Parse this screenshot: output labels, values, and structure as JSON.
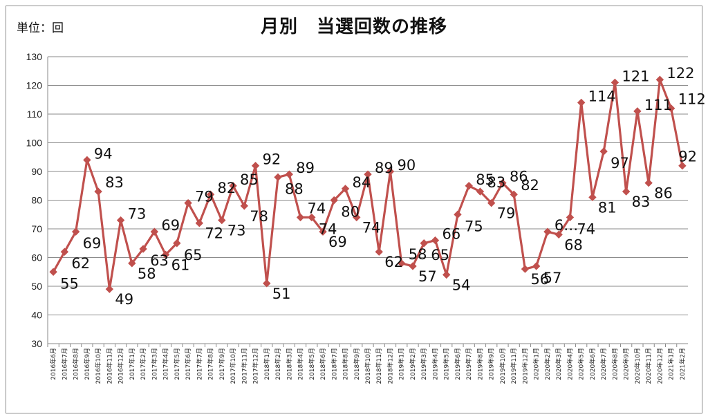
{
  "unit_label": "単位：回",
  "chart_data": {
    "type": "line",
    "title": "月別　当選回数の推移",
    "xlabel": "",
    "ylabel": "",
    "ylim": [
      30,
      130
    ],
    "yticks": [
      30,
      40,
      50,
      60,
      70,
      80,
      90,
      100,
      110,
      120,
      130
    ],
    "grid": true,
    "legend": "none",
    "series_color": "#c0504d",
    "categories": [
      "2016年6月",
      "2016年7月",
      "2016年8月",
      "2016年9月",
      "2016年10月",
      "2016年11月",
      "2016年12月",
      "2017年1月",
      "2017年2月",
      "2017年3月",
      "2017年4月",
      "2017年5月",
      "2017年6月",
      "2017年7月",
      "2017年8月",
      "2017年9月",
      "2017年10月",
      "2017年11月",
      "2017年12月",
      "2018年1月",
      "2018年2月",
      "2018年3月",
      "2018年4月",
      "2018年5月",
      "2018年6月",
      "2018年7月",
      "2018年8月",
      "2018年9月",
      "2018年10月",
      "2018年11月",
      "2018年12月",
      "2019年1月",
      "2019年2月",
      "2019年3月",
      "2019年4月",
      "2019年5月",
      "2019年6月",
      "2019年7月",
      "2019年8月",
      "2019年9月",
      "2019年10月",
      "2019年11月",
      "2019年12月",
      "2020年1月",
      "2020年2月",
      "2020年3月",
      "2020年4月",
      "2020年5月",
      "2020年6月",
      "2020年7月",
      "2020年8月",
      "2020年9月",
      "2020年10月",
      "2020年11月",
      "2020年12月",
      "2021年1月",
      "2021年2月"
    ],
    "series": [
      {
        "values": [
          55,
          62,
          69,
          94,
          83,
          49,
          73,
          58,
          63,
          69,
          61,
          65,
          79,
          72,
          82,
          73,
          85,
          78,
          92,
          51,
          88,
          89,
          74,
          74,
          69,
          80,
          84,
          74,
          89,
          62,
          90,
          58,
          57,
          65,
          66,
          54,
          75,
          85,
          83,
          79,
          86,
          82,
          56,
          57,
          69,
          68,
          74,
          114,
          81,
          97,
          121,
          83,
          111,
          86,
          122,
          112,
          92
        ]
      }
    ],
    "data_labels": [
      {
        "text": "55",
        "i": 0
      },
      {
        "text": "62",
        "i": 1
      },
      {
        "text": "69",
        "i": 2
      },
      {
        "text": "94",
        "i": 3
      },
      {
        "text": "83",
        "i": 4
      },
      {
        "text": "49",
        "i": 5
      },
      {
        "text": "73",
        "i": 6
      },
      {
        "text": "58",
        "i": 7
      },
      {
        "text": "63",
        "i": 8
      },
      {
        "text": "69",
        "i": 9
      },
      {
        "text": "61",
        "i": 10
      },
      {
        "text": "65",
        "i": 11
      },
      {
        "text": "79",
        "i": 12
      },
      {
        "text": "72",
        "i": 13
      },
      {
        "text": "82",
        "i": 14
      },
      {
        "text": "73",
        "i": 15
      },
      {
        "text": "85",
        "i": 16
      },
      {
        "text": "78",
        "i": 17
      },
      {
        "text": "92",
        "i": 18
      },
      {
        "text": "51",
        "i": 19
      },
      {
        "text": "88",
        "i": 20
      },
      {
        "text": "89",
        "i": 21
      },
      {
        "text": "74",
        "i": 22
      },
      {
        "text": "74",
        "i": 23
      },
      {
        "text": "69",
        "i": 24
      },
      {
        "text": "80",
        "i": 25
      },
      {
        "text": "84",
        "i": 26
      },
      {
        "text": "74",
        "i": 27
      },
      {
        "text": "89",
        "i": 28
      },
      {
        "text": "62",
        "i": 29
      },
      {
        "text": "90",
        "i": 30
      },
      {
        "text": "58",
        "i": 31
      },
      {
        "text": "57",
        "i": 32
      },
      {
        "text": "65",
        "i": 33
      },
      {
        "text": "66",
        "i": 34
      },
      {
        "text": "54",
        "i": 35
      },
      {
        "text": "75",
        "i": 36
      },
      {
        "text": "85",
        "i": 37
      },
      {
        "text": "83",
        "i": 38
      },
      {
        "text": "79",
        "i": 39
      },
      {
        "text": "86",
        "i": 40
      },
      {
        "text": "82",
        "i": 41
      },
      {
        "text": "56",
        "i": 42
      },
      {
        "text": "57",
        "i": 43
      },
      {
        "text": "6…",
        "i": 44
      },
      {
        "text": "68",
        "i": 45
      },
      {
        "text": "74",
        "i": 46
      },
      {
        "text": "114",
        "i": 47
      },
      {
        "text": "81",
        "i": 48
      },
      {
        "text": "97",
        "i": 49
      },
      {
        "text": "121",
        "i": 50
      },
      {
        "text": "83",
        "i": 51
      },
      {
        "text": "111",
        "i": 52
      },
      {
        "text": "86",
        "i": 53
      },
      {
        "text": "122",
        "i": 54
      },
      {
        "text": "112",
        "i": 55
      },
      {
        "text": "92",
        "i": 56
      }
    ]
  }
}
